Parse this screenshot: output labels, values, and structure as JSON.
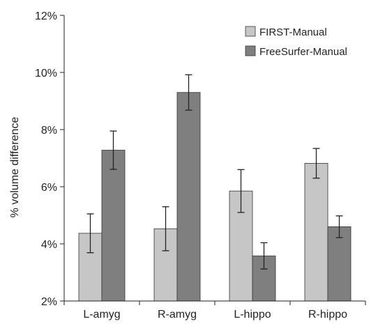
{
  "chart_data": {
    "type": "bar",
    "categories": [
      "L-amyg",
      "R-amyg",
      "L-hippo",
      "R-hippo"
    ],
    "series": [
      {
        "name": "FIRST-Manual",
        "color": "#c6c6c6",
        "values": [
          4.37,
          4.53,
          5.85,
          6.82
        ],
        "error": [
          0.68,
          0.77,
          0.75,
          0.52
        ]
      },
      {
        "name": "FreeSurfer-Manual",
        "color": "#7f7f7f",
        "values": [
          7.28,
          9.3,
          3.58,
          4.6
        ],
        "error": [
          0.67,
          0.62,
          0.46,
          0.38
        ]
      }
    ],
    "title": "",
    "xlabel": "",
    "ylabel": "% volume difference",
    "ylim": [
      2,
      12
    ],
    "yticks": [
      2,
      4,
      6,
      8,
      10,
      12
    ],
    "ytick_labels": [
      "2%",
      "4%",
      "6%",
      "8%",
      "10%",
      "12%"
    ],
    "grid": false,
    "legend_position": "top-right"
  }
}
